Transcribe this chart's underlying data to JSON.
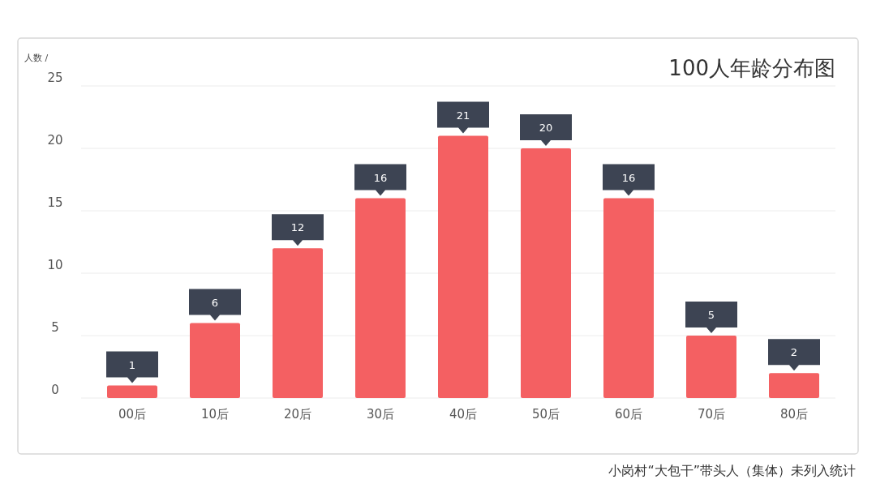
{
  "chart_data": {
    "type": "bar",
    "title": "100人年龄分布图",
    "ylabel": "人数 /",
    "categories": [
      "00后",
      "10后",
      "20后",
      "30后",
      "40后",
      "50后",
      "60后",
      "70后",
      "80后"
    ],
    "values": [
      1,
      6,
      12,
      16,
      21,
      20,
      16,
      5,
      2
    ],
    "data_labels": true,
    "color": "#f46062",
    "ylim": [
      0,
      25
    ],
    "yticks": [
      0,
      5,
      10,
      15,
      20,
      25
    ],
    "grid": "y",
    "annotations": [
      "小岗村“大包干”带头人（集体）未列入统计"
    ]
  }
}
